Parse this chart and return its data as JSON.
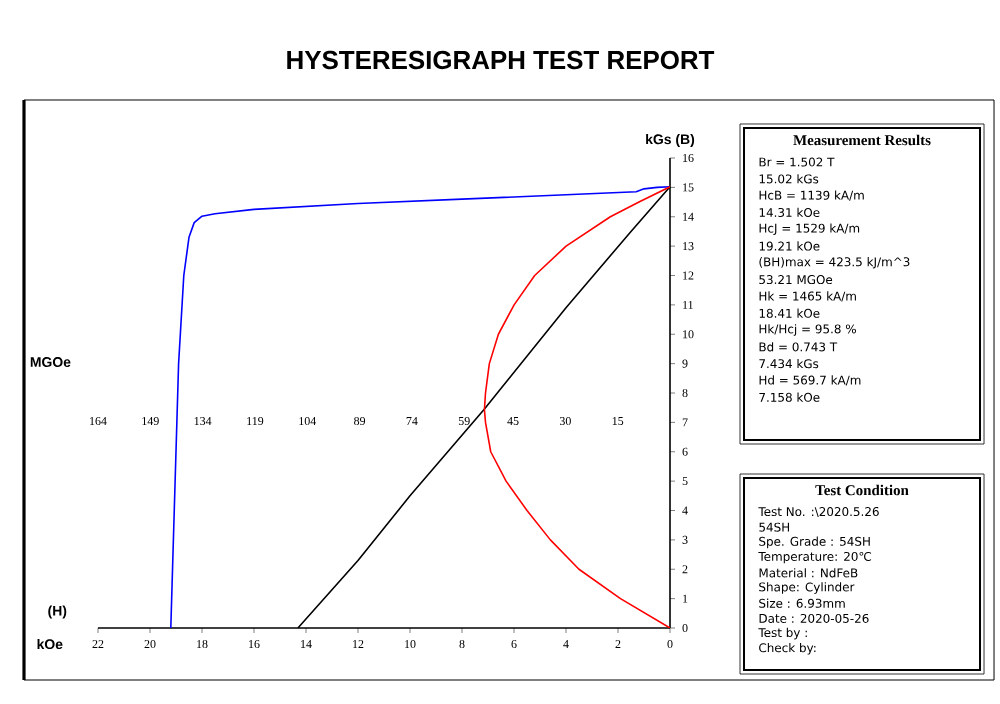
{
  "chart_data": [
    {
      "type": "line",
      "title": "HYSTERESIGRAPH TEST REPORT",
      "xlabel": "kOe",
      "ylabel": "kGs (B)",
      "x2label": "MGOe",
      "annotations": [
        "(H)"
      ],
      "xlim": [
        22,
        0
      ],
      "xticks": [
        22,
        20,
        18,
        16,
        14,
        12,
        10,
        8,
        6,
        4,
        2,
        0
      ],
      "ylim": [
        0,
        16
      ],
      "yticks": [
        0,
        1,
        2,
        3,
        4,
        5,
        6,
        7,
        8,
        9,
        10,
        11,
        12,
        13,
        14,
        15,
        16
      ],
      "x2lim": [
        164,
        0
      ],
      "x2ticks": [
        164,
        149,
        134,
        119,
        104,
        89,
        74,
        59,
        45,
        30,
        15
      ],
      "marker": "none",
      "line_style": "solid",
      "series": [
        {
          "color": "#0000ff",
          "x": [
            0,
            0.5,
            1,
            1.3,
            4,
            8,
            12,
            16,
            17.5,
            18,
            18.3,
            18.5,
            18.7,
            18.9,
            19.0,
            19.1,
            19.2
          ],
          "values": [
            15.02,
            15.0,
            14.95,
            14.85,
            14.75,
            14.6,
            14.45,
            14.25,
            14.1,
            14.02,
            13.8,
            13.3,
            12,
            9,
            6,
            3,
            0
          ]
        },
        {
          "color": "#000000",
          "x": [
            0,
            1.5,
            4,
            7.16,
            10,
            12,
            14.31
          ],
          "values": [
            15.02,
            13.5,
            10.9,
            7.43,
            4.5,
            2.3,
            0
          ]
        },
        {
          "color": "#ff0000",
          "axis": "x2",
          "x": [
            0,
            14.2,
            26.1,
            34.3,
            41.0,
            47.0,
            51.4,
            52.9,
            53.21,
            52.9,
            51.8,
            49.2,
            44.7,
            38.8,
            29.8,
            17.1,
            8.9,
            0
          ],
          "values": [
            0,
            1,
            2,
            3,
            4,
            5,
            6,
            7,
            7.43,
            8,
            9,
            10,
            11,
            12,
            13,
            14,
            14.5,
            15.02
          ]
        }
      ]
    },
    {
      "type": "other",
      "title": "Measurement Results",
      "annotations": [
        "Br = 1.502 T",
        "15.02 kGs",
        "HcB = 1139 kA/m",
        "14.31 kOe",
        "HcJ = 1529 kA/m",
        "19.21 kOe",
        "(BH)max = 423.5 kJ/m^3",
        "53.21 MGOe",
        "Hk = 1465 kA/m",
        "18.41 kOe",
        "Hk/Hcj = 95.8 %",
        "Bd = 0.743 T",
        "7.434 kGs",
        "Hd = 569.7 kA/m",
        "7.158 kOe"
      ]
    },
    {
      "type": "other",
      "title": "Test Condition",
      "annotations": [
        "Test No. :\\2020.5.26",
        "54SH",
        "Spe. Grade : 54SH",
        "Temperature: 20℃",
        "Material : NdFeB",
        "Shape: Cylinder",
        "Size : 6.93mm",
        "Date : 2020-05-26",
        "Test by :",
        "Check by:"
      ]
    }
  ]
}
